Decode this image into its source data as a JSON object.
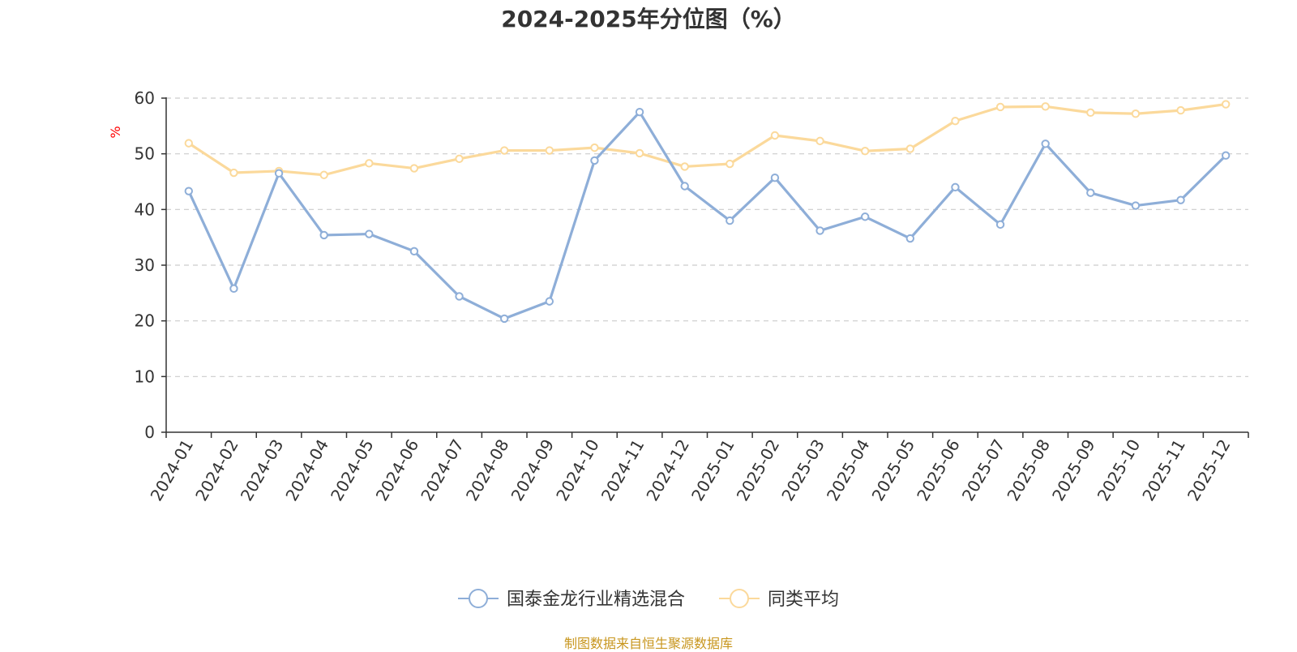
{
  "chart_data": {
    "type": "line",
    "title": "2024-2025年分位图（%）",
    "ylabel": "%",
    "ylim": [
      0,
      60
    ],
    "yticks": [
      0,
      10,
      20,
      30,
      40,
      50,
      60
    ],
    "grid": true,
    "legend_position": "bottom",
    "categories": [
      "2024-01",
      "2024-02",
      "2024-03",
      "2024-04",
      "2024-05",
      "2024-06",
      "2024-07",
      "2024-08",
      "2024-09",
      "2024-10",
      "2024-11",
      "2024-12",
      "2025-01",
      "2025-02",
      "2025-03",
      "2025-04",
      "2025-05",
      "2025-06",
      "2025-07",
      "2025-08",
      "2025-09",
      "2025-10",
      "2025-11",
      "2025-12"
    ],
    "series": [
      {
        "name": "国泰金龙行业精选混合",
        "color": "#8eaed8",
        "values": [
          43.3,
          25.8,
          46.5,
          35.4,
          35.6,
          32.5,
          24.4,
          20.4,
          23.5,
          48.8,
          57.5,
          44.2,
          38.0,
          45.7,
          36.2,
          38.7,
          34.8,
          44.0,
          37.3,
          51.8,
          43.0,
          40.7,
          41.7,
          49.7
        ]
      },
      {
        "name": "同类平均",
        "color": "#fbd99b",
        "values": [
          51.9,
          46.6,
          46.9,
          46.2,
          48.3,
          47.4,
          49.1,
          50.6,
          50.6,
          51.1,
          50.1,
          47.7,
          48.2,
          53.3,
          52.3,
          50.5,
          50.9,
          55.9,
          58.4,
          58.5,
          57.4,
          57.2,
          57.8,
          58.9
        ]
      }
    ]
  },
  "source_note": "制图数据来自恒生聚源数据库"
}
